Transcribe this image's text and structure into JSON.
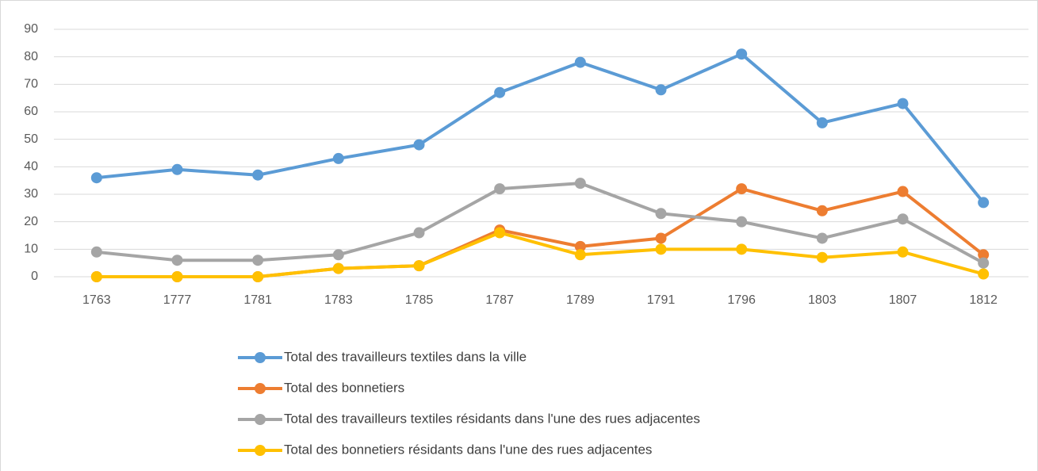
{
  "chart_data": {
    "type": "line",
    "categories": [
      "1763",
      "1777",
      "1781",
      "1783",
      "1785",
      "1787",
      "1789",
      "1791",
      "1796",
      "1803",
      "1807",
      "1812"
    ],
    "series": [
      {
        "name": "Total des travailleurs textiles dans la ville",
        "color": "#5b9bd5",
        "values": [
          36,
          39,
          37,
          43,
          48,
          67,
          78,
          68,
          81,
          56,
          63,
          27
        ]
      },
      {
        "name": "Total des bonnetiers",
        "color": "#ed7d31",
        "values": [
          0,
          0,
          0,
          3,
          4,
          17,
          11,
          14,
          32,
          24,
          31,
          8
        ]
      },
      {
        "name": "Total des travailleurs textiles résidants dans l'une des rues adjacentes",
        "color": "#a5a5a5",
        "values": [
          9,
          6,
          6,
          8,
          16,
          32,
          34,
          23,
          20,
          14,
          21,
          5
        ]
      },
      {
        "name": "Total des bonnetiers résidants dans l'une des rues adjacentes",
        "color": "#ffc000",
        "values": [
          0,
          0,
          0,
          3,
          4,
          16,
          8,
          10,
          10,
          7,
          9,
          1
        ]
      }
    ],
    "ylim": [
      0,
      90
    ],
    "yticks": [
      0,
      10,
      20,
      30,
      40,
      50,
      60,
      70,
      80,
      90
    ],
    "grid": true,
    "legend": "bottom"
  }
}
